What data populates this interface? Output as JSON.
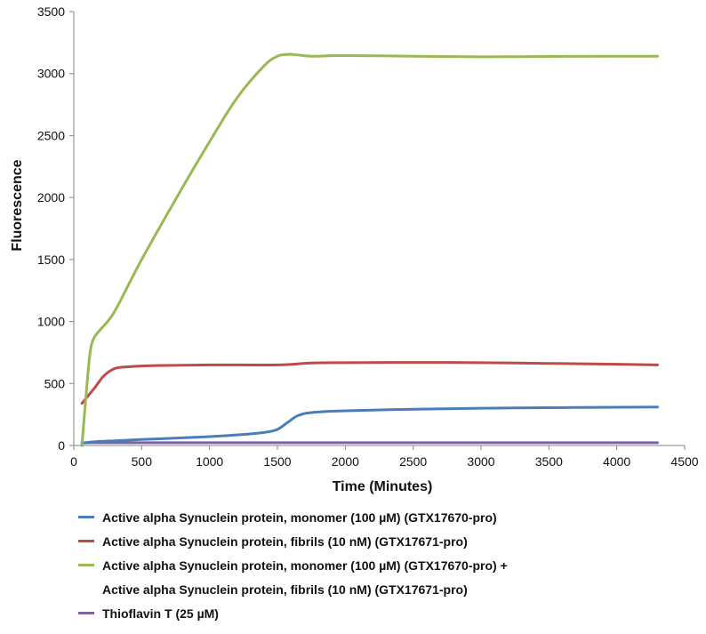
{
  "chart_data": {
    "type": "line",
    "title": "",
    "xlabel": "Time (Minutes)",
    "ylabel": "Fluorescence",
    "xlim": [
      0,
      4500
    ],
    "ylim": [
      0,
      3500
    ],
    "xticks": [
      0,
      500,
      1000,
      1500,
      2000,
      2500,
      3000,
      3500,
      4000,
      4500
    ],
    "yticks": [
      0,
      500,
      1000,
      1500,
      2000,
      2500,
      3000,
      3500
    ],
    "grid": false,
    "legend_position": "bottom",
    "series": [
      {
        "name": "Active alpha Synuclein protein, monomer (100 µM) (GTX17670-pro)",
        "color": "#4a7ebb",
        "x": [
          60,
          150,
          300,
          500,
          800,
          1000,
          1200,
          1400,
          1500,
          1580,
          1650,
          1750,
          2000,
          2500,
          3000,
          3500,
          4000,
          4300
        ],
        "y": [
          20,
          30,
          38,
          48,
          62,
          72,
          85,
          105,
          130,
          190,
          240,
          265,
          280,
          292,
          300,
          305,
          308,
          310
        ]
      },
      {
        "name": "Active alpha Synuclein protein, fibrils (10 nM) (GTX17671-pro)",
        "color": "#be4b48",
        "x": [
          60,
          150,
          220,
          300,
          400,
          600,
          1000,
          1500,
          1750,
          2000,
          2500,
          3000,
          3500,
          4000,
          4300
        ],
        "y": [
          340,
          460,
          560,
          620,
          635,
          645,
          650,
          650,
          665,
          668,
          670,
          668,
          662,
          655,
          650
        ]
      },
      {
        "name": "Active alpha Synuclein protein, monomer (100 µM) (GTX17670-pro) + Active alpha Synuclein protein, fibrils (10 nM) (GTX17671-pro)",
        "name_lines": [
          "Active alpha Synuclein protein, monomer (100 µM) (GTX17670-pro) +",
          "Active alpha Synuclein protein, fibrils (10 nM) (GTX17671-pro)"
        ],
        "color": "#98b954",
        "x": [
          60,
          90,
          120,
          150,
          200,
          300,
          500,
          800,
          1000,
          1200,
          1400,
          1500,
          1580,
          1650,
          1750,
          2000,
          2500,
          3000,
          3500,
          4000,
          4300
        ],
        "y": [
          0,
          400,
          750,
          870,
          940,
          1080,
          1500,
          2080,
          2450,
          2800,
          3060,
          3140,
          3155,
          3150,
          3140,
          3145,
          3140,
          3135,
          3138,
          3140,
          3140
        ]
      },
      {
        "name": "Thioflavin T (25 µM)",
        "color": "#7e649e",
        "x": [
          60,
          150,
          500,
          1000,
          2000,
          3000,
          4000,
          4300
        ],
        "y": [
          20,
          22,
          22,
          22,
          22,
          22,
          22,
          22
        ]
      }
    ]
  }
}
